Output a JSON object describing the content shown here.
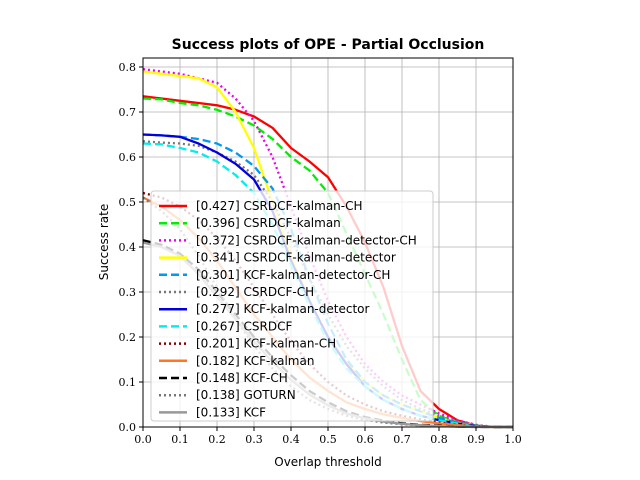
{
  "chart_data": {
    "type": "line",
    "title": "Success plots of OPE - Partial Occlusion",
    "xlabel": "Overlap threshold",
    "ylabel": "Success rate",
    "xlim": [
      0,
      1
    ],
    "ylim": [
      0,
      0.82
    ],
    "xticks": [
      "0.0",
      "0.1",
      "0.2",
      "0.3",
      "0.4",
      "0.5",
      "0.6",
      "0.7",
      "0.8",
      "0.9",
      "1.0"
    ],
    "yticks": [
      "0.0",
      "0.1",
      "0.2",
      "0.3",
      "0.4",
      "0.5",
      "0.6",
      "0.7",
      "0.8"
    ],
    "grid": true,
    "legend_position": "lower-left",
    "x": [
      0,
      0.05,
      0.1,
      0.15,
      0.2,
      0.25,
      0.3,
      0.35,
      0.4,
      0.45,
      0.5,
      0.55,
      0.6,
      0.65,
      0.7,
      0.75,
      0.8,
      0.85,
      0.9,
      0.95,
      1.0
    ],
    "series": [
      {
        "name": "[0.427] CSRDCF-kalman-CH",
        "color": "#ff0000",
        "dash": "solid",
        "values": [
          0.735,
          0.73,
          0.725,
          0.72,
          0.715,
          0.705,
          0.69,
          0.665,
          0.62,
          0.59,
          0.555,
          0.49,
          0.41,
          0.31,
          0.18,
          0.08,
          0.04,
          0.015,
          0.003,
          0.0,
          0.0
        ]
      },
      {
        "name": "[0.396] CSRDCF-kalman",
        "color": "#00ee00",
        "dash": "dashed",
        "values": [
          0.73,
          0.728,
          0.72,
          0.715,
          0.705,
          0.69,
          0.67,
          0.64,
          0.6,
          0.57,
          0.52,
          0.43,
          0.34,
          0.25,
          0.15,
          0.06,
          0.025,
          0.01,
          0.002,
          0.0,
          0.0
        ]
      },
      {
        "name": "[0.372] CSRDCF-kalman-detector-CH",
        "color": "#ee00ee",
        "dash": "dotted",
        "values": [
          0.795,
          0.79,
          0.785,
          0.775,
          0.765,
          0.73,
          0.68,
          0.6,
          0.49,
          0.38,
          0.28,
          0.2,
          0.14,
          0.1,
          0.07,
          0.05,
          0.03,
          0.015,
          0.005,
          0.0,
          0.0
        ]
      },
      {
        "name": "[0.341] CSRDCF-kalman-detector",
        "color": "#ffff00",
        "dash": "solid",
        "values": [
          0.79,
          0.785,
          0.78,
          0.775,
          0.755,
          0.7,
          0.62,
          0.5,
          0.38,
          0.28,
          0.2,
          0.14,
          0.1,
          0.07,
          0.05,
          0.035,
          0.02,
          0.01,
          0.003,
          0.0,
          0.0
        ]
      },
      {
        "name": "[0.301] KCF-kalman-detector-CH",
        "color": "#0099ee",
        "dash": "dashed",
        "values": [
          0.65,
          0.648,
          0.645,
          0.64,
          0.63,
          0.61,
          0.58,
          0.53,
          0.44,
          0.33,
          0.23,
          0.15,
          0.1,
          0.07,
          0.05,
          0.035,
          0.02,
          0.01,
          0.003,
          0.0,
          0.0
        ]
      },
      {
        "name": "[0.292] CSRDCF-CH",
        "color": "#777777",
        "dash": "dotted",
        "values": [
          0.635,
          0.632,
          0.63,
          0.625,
          0.61,
          0.59,
          0.56,
          0.5,
          0.42,
          0.33,
          0.25,
          0.18,
          0.13,
          0.09,
          0.06,
          0.04,
          0.025,
          0.012,
          0.004,
          0.0,
          0.0
        ]
      },
      {
        "name": "[0.277] KCF-kalman-detector",
        "color": "#0000dd",
        "dash": "solid",
        "values": [
          0.65,
          0.648,
          0.645,
          0.63,
          0.61,
          0.585,
          0.55,
          0.48,
          0.37,
          0.28,
          0.2,
          0.14,
          0.09,
          0.06,
          0.04,
          0.025,
          0.015,
          0.008,
          0.002,
          0.0,
          0.0
        ]
      },
      {
        "name": "[0.267] CSRDCF",
        "color": "#00eeee",
        "dash": "dashed",
        "values": [
          0.63,
          0.628,
          0.62,
          0.61,
          0.59,
          0.56,
          0.52,
          0.45,
          0.36,
          0.27,
          0.19,
          0.13,
          0.09,
          0.06,
          0.04,
          0.025,
          0.015,
          0.008,
          0.002,
          0.0,
          0.0
        ]
      },
      {
        "name": "[0.201] KCF-kalman-CH",
        "color": "#880000",
        "dash": "dotted",
        "values": [
          0.52,
          0.51,
          0.49,
          0.46,
          0.42,
          0.37,
          0.31,
          0.25,
          0.19,
          0.14,
          0.1,
          0.07,
          0.05,
          0.035,
          0.025,
          0.017,
          0.01,
          0.005,
          0.002,
          0.0,
          0.0
        ]
      },
      {
        "name": "[0.182] KCF-kalman",
        "color": "#ff7722",
        "dash": "solid",
        "values": [
          0.51,
          0.49,
          0.46,
          0.42,
          0.37,
          0.31,
          0.25,
          0.2,
          0.15,
          0.11,
          0.08,
          0.055,
          0.04,
          0.028,
          0.02,
          0.013,
          0.008,
          0.004,
          0.001,
          0.0,
          0.0
        ]
      },
      {
        "name": "[0.148] KCF-CH",
        "color": "#000000",
        "dash": "dashed",
        "values": [
          0.415,
          0.405,
          0.385,
          0.35,
          0.3,
          0.25,
          0.2,
          0.155,
          0.115,
          0.08,
          0.055,
          0.035,
          0.022,
          0.014,
          0.008,
          0.005,
          0.003,
          0.001,
          0.0,
          0.0,
          0.0
        ]
      },
      {
        "name": "[0.138] GOTURN",
        "color": "#777777",
        "dash": "dotted",
        "values": [
          0.51,
          0.48,
          0.44,
          0.38,
          0.31,
          0.24,
          0.18,
          0.13,
          0.09,
          0.06,
          0.04,
          0.025,
          0.016,
          0.01,
          0.006,
          0.004,
          0.002,
          0.001,
          0.0,
          0.0,
          0.0
        ]
      },
      {
        "name": "[0.133] KCF",
        "color": "#999999",
        "dash": "solid",
        "values": [
          0.41,
          0.4,
          0.38,
          0.34,
          0.29,
          0.24,
          0.19,
          0.145,
          0.105,
          0.072,
          0.048,
          0.03,
          0.019,
          0.012,
          0.007,
          0.004,
          0.002,
          0.001,
          0.0,
          0.0,
          0.0
        ]
      }
    ]
  }
}
